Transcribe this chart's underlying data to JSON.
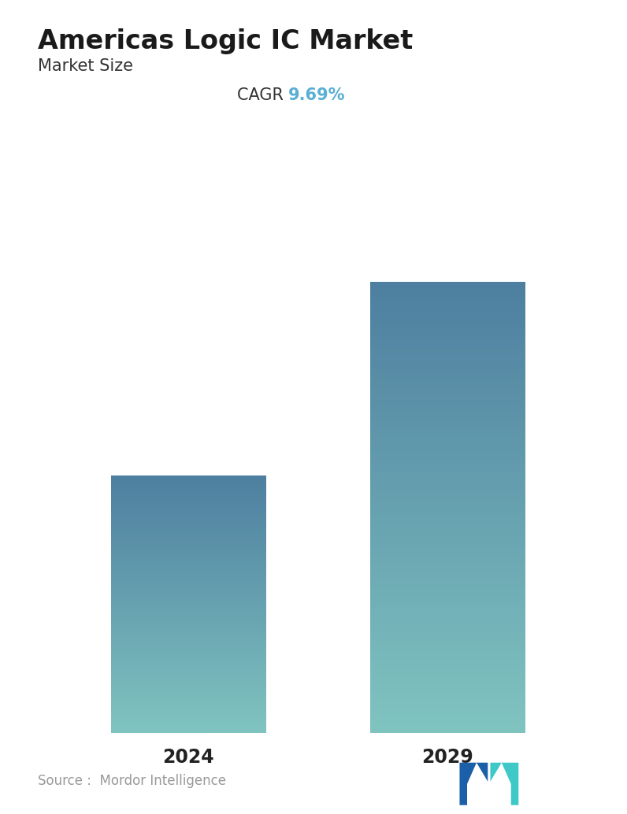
{
  "title": "Americas Logic IC Market",
  "subtitle": "Market Size",
  "cagr_label": "CAGR ",
  "cagr_value": "9.69%",
  "cagr_color": "#5aafd4",
  "categories": [
    "2024",
    "2029"
  ],
  "values": [
    0.57,
    1.0
  ],
  "bar_top_color": "#4e7fa0",
  "bar_bottom_color": "#80c4c0",
  "source_text": "Source :  Mordor Intelligence",
  "background_color": "#ffffff",
  "title_fontsize": 24,
  "subtitle_fontsize": 15,
  "cagr_fontsize": 15,
  "xlabel_fontsize": 17,
  "source_fontsize": 12
}
